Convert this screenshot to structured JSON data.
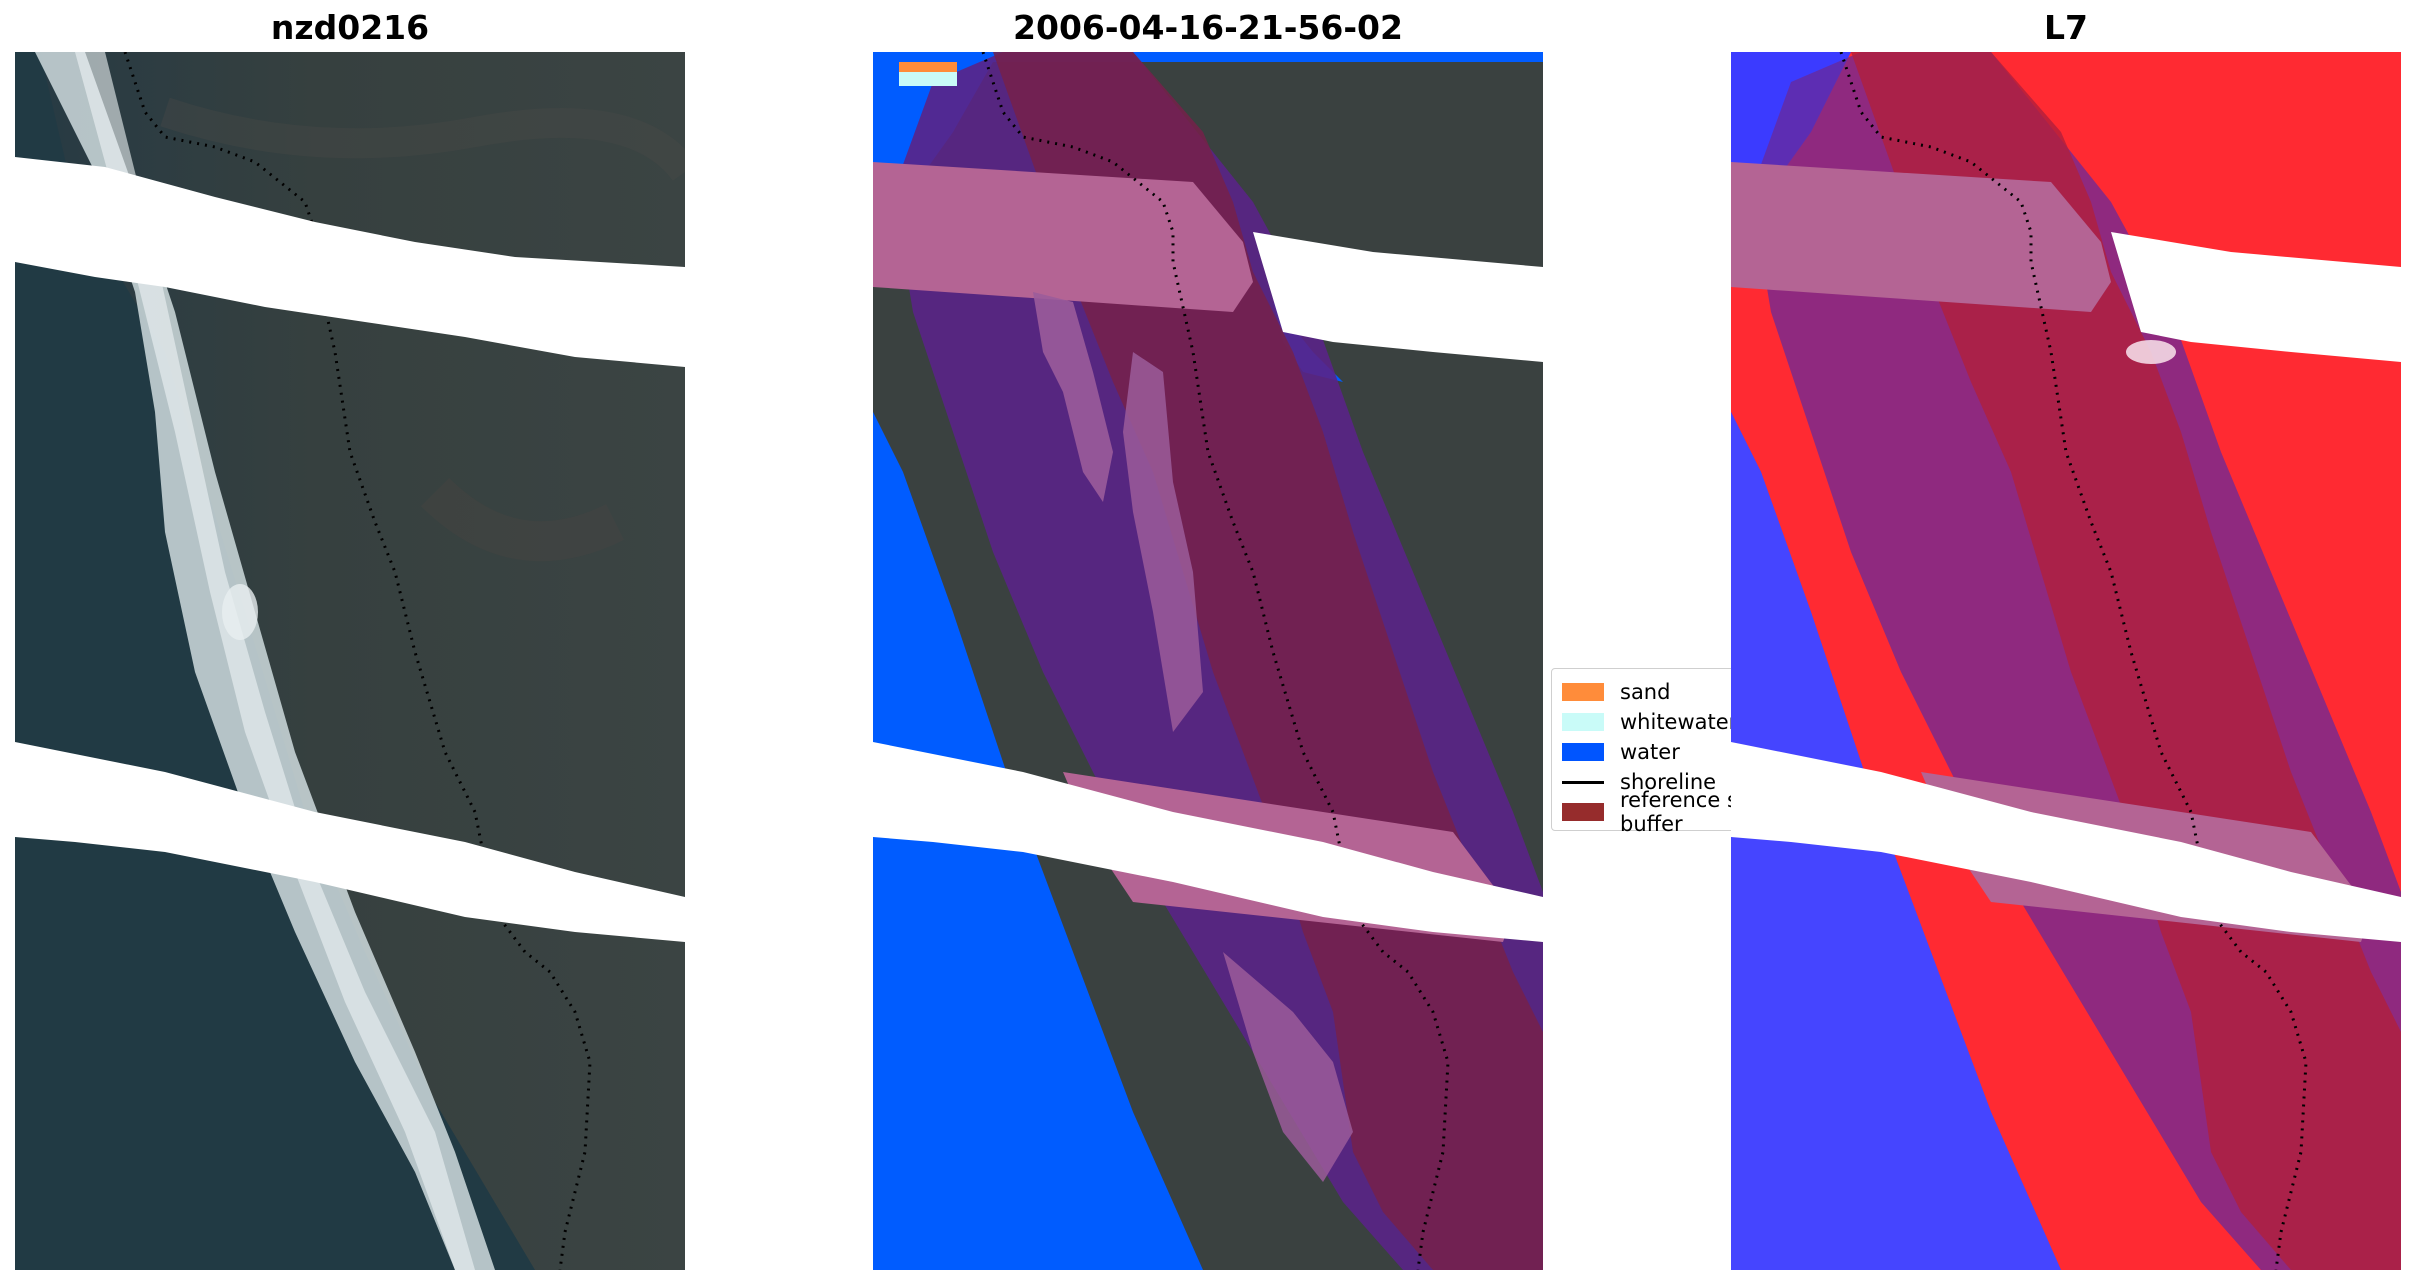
{
  "panels": [
    {
      "title": "nzd0216",
      "kind": "rgb"
    },
    {
      "title": "2006-04-16-21-56-02",
      "kind": "classified"
    },
    {
      "title": "L7",
      "kind": "index"
    }
  ],
  "legend": {
    "items": [
      {
        "label": "sand",
        "color": "#ff8c3a",
        "shape": "patch"
      },
      {
        "label": "whitewater",
        "color": "#c9fbf8",
        "shape": "patch"
      },
      {
        "label": "water",
        "color": "#0055ff",
        "shape": "patch"
      },
      {
        "label": "shoreline",
        "color": "#000000",
        "shape": "line"
      },
      {
        "label": "reference shoreline buffer",
        "color": "#962c2c",
        "shape": "patch"
      }
    ]
  },
  "colors": {
    "land": "#3a4140",
    "sea": "#213a44",
    "surf": "#d8e4e6",
    "water_class": "#005cff",
    "buffer_overlay": "#5a2387",
    "buffer_band": "#b46494",
    "index_land": "#ff1f2a",
    "index_water": "#3a3cff",
    "nodata": "#ffffff"
  }
}
